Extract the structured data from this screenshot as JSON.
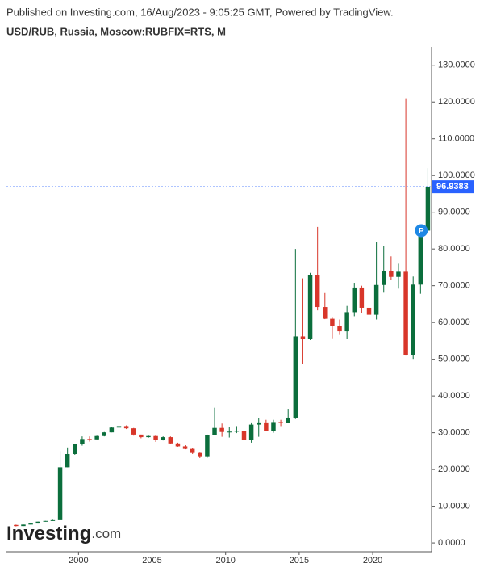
{
  "chart_data": {
    "type": "candlestick",
    "title": "Published on Investing.com, 16/Aug/2023 - 9:05:25 GMT, Powered by TradingView.",
    "subtitle": "USD/RUB, Russia, Moscow:RUBFIX=RTS, M",
    "watermark": [
      "Investing",
      ".com"
    ],
    "up_color": "#0b6e3c",
    "down_color": "#d8362a",
    "x": [
      1995.75,
      1996.25,
      1996.75,
      1997.25,
      1997.75,
      1998.25,
      1998.75,
      1999.25,
      1999.75,
      2000.25,
      2000.75,
      2001.25,
      2001.75,
      2002.25,
      2002.75,
      2003.25,
      2003.75,
      2004.25,
      2004.75,
      2005.25,
      2005.75,
      2006.25,
      2006.75,
      2007.25,
      2007.75,
      2008.25,
      2008.75,
      2009.25,
      2009.75,
      2010.25,
      2010.75,
      2011.25,
      2011.75,
      2012.25,
      2012.75,
      2013.25,
      2013.75,
      2014.25,
      2014.75,
      2015.25,
      2015.75,
      2016.25,
      2016.75,
      2017.25,
      2017.75,
      2018.25,
      2018.75,
      2019.25,
      2019.75,
      2020.25,
      2020.75,
      2021.25,
      2021.75,
      2022.25,
      2022.75,
      2023.25,
      2023.75
    ],
    "open": [
      4.9,
      4.6,
      5.0,
      5.5,
      5.8,
      6.0,
      6.2,
      20.6,
      24.2,
      27,
      28.3,
      28.2,
      29.1,
      30.1,
      31.4,
      31.8,
      31.2,
      29.5,
      28.8,
      29.1,
      28.0,
      28.8,
      27.1,
      26.3,
      25.6,
      24.5,
      23.4,
      29.4,
      31.3,
      30.2,
      30.3,
      30.5,
      28.1,
      32.2,
      32.8,
      30.5,
      32.9,
      32.7,
      34.1,
      56.2,
      55.5,
      72.9,
      64.2,
      61.0,
      59.1,
      57.6,
      62.8,
      69.5,
      64.0,
      62.1,
      70.2,
      73.9,
      72.4,
      73.8,
      51.2,
      70.3,
      85.0
    ],
    "high": [
      5.0,
      5.0,
      5.5,
      5.8,
      6.0,
      6.3,
      25,
      26,
      27,
      29,
      29,
      29.2,
      30.2,
      31.5,
      32,
      32,
      31.3,
      29.5,
      29.3,
      29.3,
      29,
      29,
      27.3,
      26.6,
      25.8,
      24.6,
      29.5,
      36.8,
      32.5,
      31.5,
      31.8,
      30.6,
      32.8,
      34.0,
      33.5,
      33.5,
      33.5,
      36.5,
      80.0,
      72.0,
      73.5,
      86.0,
      68.0,
      61.5,
      60.8,
      64.5,
      70.8,
      70.0,
      67.2,
      82.0,
      80.9,
      78.0,
      76.0,
      121.0,
      72.5,
      85.5,
      102.0
    ],
    "low": [
      4.5,
      4.6,
      5.0,
      5.5,
      5.8,
      6.0,
      6.2,
      20.6,
      24,
      26.5,
      27.6,
      28.2,
      29.0,
      30.1,
      31.4,
      31,
      29.2,
      28.5,
      28.6,
      27.5,
      27.9,
      27,
      26.2,
      25.5,
      24.2,
      23.1,
      23.2,
      29.3,
      28.9,
      28.7,
      29.9,
      27.3,
      27.3,
      28.9,
      30.4,
      30.0,
      31.8,
      32.6,
      33.7,
      48.7,
      55.2,
      63.3,
      60.9,
      55.7,
      56.6,
      55.6,
      61.7,
      62.6,
      61.5,
      60.8,
      68.1,
      71.5,
      69.2,
      51.0,
      50.1,
      67.8,
      84.5
    ],
    "close": [
      4.6,
      5.0,
      5.5,
      5.8,
      6.0,
      6.2,
      20.6,
      24.2,
      27,
      28.3,
      28.2,
      29.1,
      30.1,
      31.4,
      31.8,
      31.2,
      29.5,
      28.8,
      29.1,
      28.0,
      28.8,
      27.1,
      26.3,
      25.6,
      24.5,
      23.4,
      29.4,
      31.3,
      30.2,
      30.3,
      30.5,
      28.1,
      32.2,
      32.8,
      30.5,
      32.9,
      32.7,
      34.1,
      56.2,
      55.5,
      72.9,
      64.2,
      61.0,
      59.1,
      57.6,
      62.8,
      69.5,
      64.0,
      62.1,
      70.2,
      73.9,
      72.4,
      73.8,
      51.2,
      70.3,
      85.0,
      96.9
    ],
    "xlim": [
      1995.1,
      2024.0
    ],
    "xticks": [
      2000,
      2005,
      2010,
      2015,
      2020
    ],
    "ylim": [
      -2.4,
      135
    ],
    "yticks": [
      {
        "value": 0,
        "label": "0.0000"
      },
      {
        "value": 10,
        "label": "10.0000"
      },
      {
        "value": 20,
        "label": "20.0000"
      },
      {
        "value": 30,
        "label": "30.0000"
      },
      {
        "value": 40,
        "label": "40.0000"
      },
      {
        "value": 50,
        "label": "50.0000"
      },
      {
        "value": 60,
        "label": "60.0000"
      },
      {
        "value": 70,
        "label": "70.0000"
      },
      {
        "value": 80,
        "label": "80.0000"
      },
      {
        "value": 90,
        "label": "90.0000"
      },
      {
        "value": 100,
        "label": "100.0000"
      },
      {
        "value": 110,
        "label": "110.0000"
      },
      {
        "value": 120,
        "label": "120.0000"
      },
      {
        "value": 130,
        "label": "130.0000"
      }
    ],
    "last_value": 96.9383,
    "last_color": "#2962ff",
    "marker": {
      "label": "P",
      "x": 2023.3,
      "value": 85
    }
  }
}
